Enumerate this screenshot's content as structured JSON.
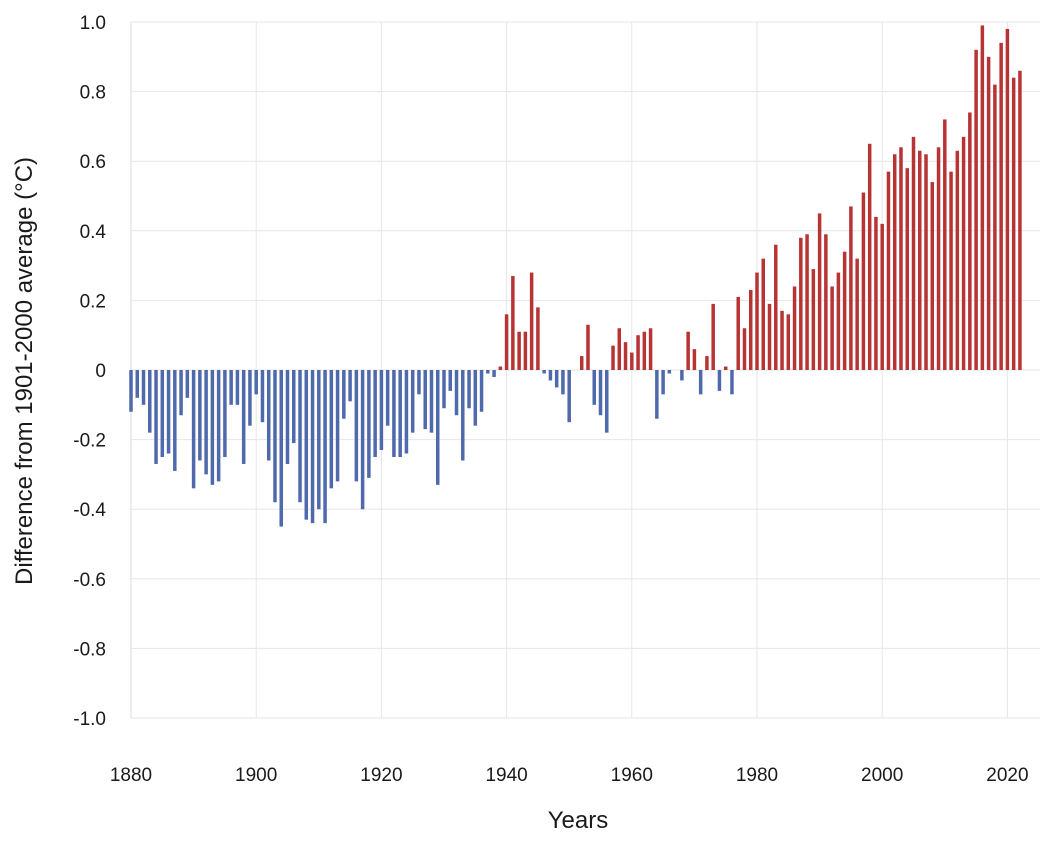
{
  "chart_data": {
    "type": "bar",
    "title": "",
    "xlabel": "Years",
    "ylabel": "Difference from 1901-2000 average (°C)",
    "xlim": [
      1880,
      2022
    ],
    "ylim": [
      -1.0,
      1.0
    ],
    "x_ticks": [
      "1880",
      "1900",
      "1920",
      "1940",
      "1960",
      "1980",
      "2000",
      "2020"
    ],
    "y_ticks": [
      "1.0",
      "0.8",
      "0.6",
      "0.4",
      "0.2",
      "0",
      "-0.2",
      "-0.4",
      "-0.6",
      "-0.8",
      "-1.0"
    ],
    "grid": true,
    "legend": "none",
    "colors": {
      "negative": "#4f69ad",
      "positive": "#b83434"
    },
    "years": [
      1880,
      1881,
      1882,
      1883,
      1884,
      1885,
      1886,
      1887,
      1888,
      1889,
      1890,
      1891,
      1892,
      1893,
      1894,
      1895,
      1896,
      1897,
      1898,
      1899,
      1900,
      1901,
      1902,
      1903,
      1904,
      1905,
      1906,
      1907,
      1908,
      1909,
      1910,
      1911,
      1912,
      1913,
      1914,
      1915,
      1916,
      1917,
      1918,
      1919,
      1920,
      1921,
      1922,
      1923,
      1924,
      1925,
      1926,
      1927,
      1928,
      1929,
      1930,
      1931,
      1932,
      1933,
      1934,
      1935,
      1936,
      1937,
      1938,
      1939,
      1940,
      1941,
      1942,
      1943,
      1944,
      1945,
      1946,
      1947,
      1948,
      1949,
      1950,
      1951,
      1952,
      1953,
      1954,
      1955,
      1956,
      1957,
      1958,
      1959,
      1960,
      1961,
      1962,
      1963,
      1964,
      1965,
      1966,
      1967,
      1968,
      1969,
      1970,
      1971,
      1972,
      1973,
      1974,
      1975,
      1976,
      1977,
      1978,
      1979,
      1980,
      1981,
      1982,
      1983,
      1984,
      1985,
      1986,
      1987,
      1988,
      1989,
      1990,
      1991,
      1992,
      1993,
      1994,
      1995,
      1996,
      1997,
      1998,
      1999,
      2000,
      2001,
      2002,
      2003,
      2004,
      2005,
      2006,
      2007,
      2008,
      2009,
      2010,
      2011,
      2012,
      2013,
      2014,
      2015,
      2016,
      2017,
      2018,
      2019,
      2020,
      2021,
      2022
    ],
    "values": [
      -0.12,
      -0.08,
      -0.1,
      -0.18,
      -0.27,
      -0.25,
      -0.24,
      -0.29,
      -0.13,
      -0.08,
      -0.34,
      -0.26,
      -0.3,
      -0.33,
      -0.32,
      -0.25,
      -0.1,
      -0.1,
      -0.27,
      -0.16,
      -0.07,
      -0.15,
      -0.26,
      -0.38,
      -0.45,
      -0.27,
      -0.21,
      -0.38,
      -0.43,
      -0.44,
      -0.4,
      -0.44,
      -0.34,
      -0.32,
      -0.14,
      -0.09,
      -0.32,
      -0.4,
      -0.31,
      -0.25,
      -0.23,
      -0.16,
      -0.25,
      -0.25,
      -0.24,
      -0.18,
      -0.07,
      -0.17,
      -0.18,
      -0.33,
      -0.11,
      -0.06,
      -0.13,
      -0.26,
      -0.11,
      -0.16,
      -0.12,
      -0.01,
      -0.02,
      0.01,
      0.16,
      0.27,
      0.11,
      0.11,
      0.28,
      0.18,
      -0.01,
      -0.03,
      -0.05,
      -0.07,
      -0.15,
      0.0,
      0.04,
      0.13,
      -0.1,
      -0.13,
      -0.18,
      0.07,
      0.12,
      0.08,
      0.05,
      0.1,
      0.11,
      0.12,
      -0.14,
      -0.07,
      -0.01,
      0.0,
      -0.03,
      0.11,
      0.06,
      -0.07,
      0.04,
      0.19,
      -0.06,
      0.01,
      -0.07,
      0.21,
      0.12,
      0.23,
      0.28,
      0.32,
      0.19,
      0.36,
      0.17,
      0.16,
      0.24,
      0.38,
      0.39,
      0.29,
      0.45,
      0.39,
      0.24,
      0.28,
      0.34,
      0.47,
      0.32,
      0.51,
      0.65,
      0.44,
      0.42,
      0.57,
      0.62,
      0.64,
      0.58,
      0.67,
      0.63,
      0.62,
      0.54,
      0.64,
      0.72,
      0.57,
      0.63,
      0.67,
      0.74,
      0.92,
      0.99,
      0.9,
      0.82,
      0.94,
      0.98,
      0.84,
      0.86
    ]
  }
}
